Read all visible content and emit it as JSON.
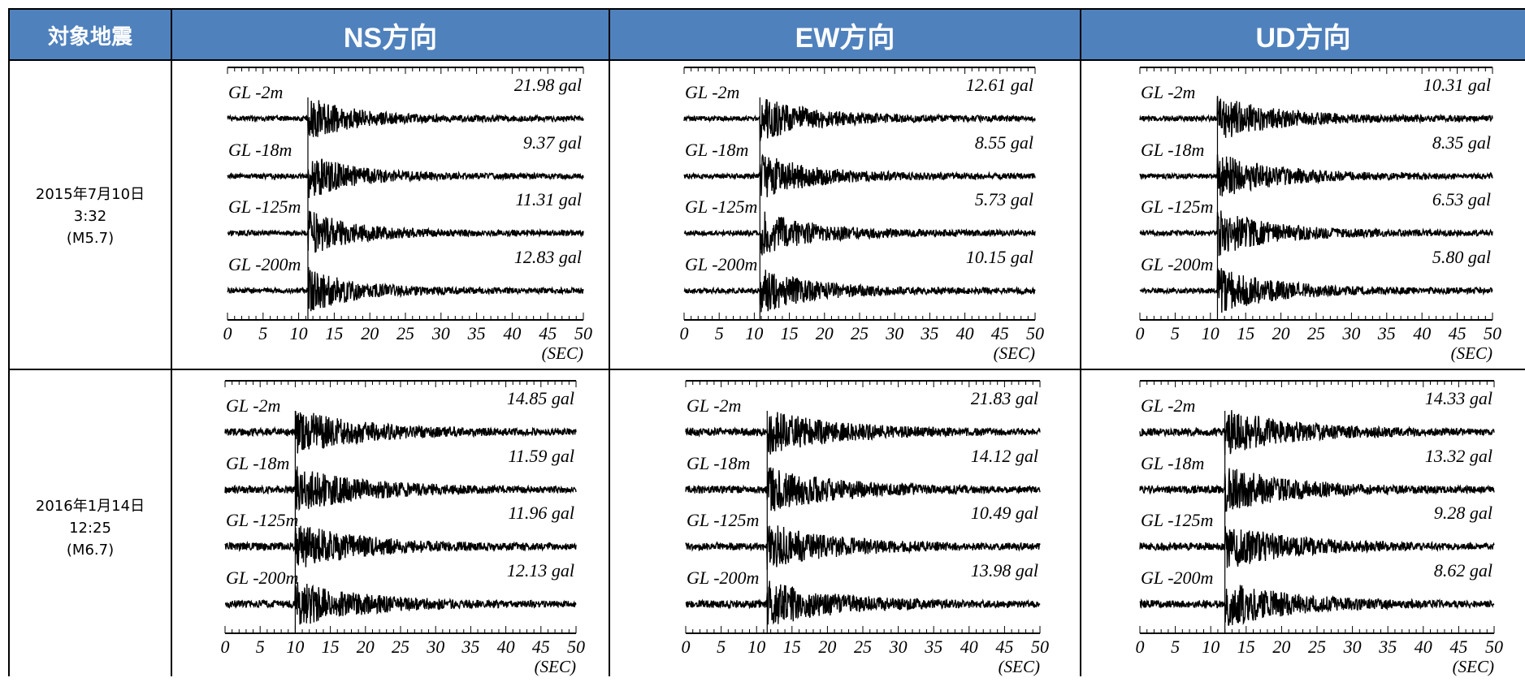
{
  "header": {
    "col0": "対象地震",
    "cols": [
      "NS方向",
      "EW方向",
      "UD方向"
    ]
  },
  "colors": {
    "header_bg": "#4f81bd",
    "header_text": "#ffffff",
    "trace": "#000000"
  },
  "rows": [
    {
      "date": "2015年7月10日",
      "time": "3:32",
      "mag": "(M5.7)"
    },
    {
      "date": "2016年1月14日",
      "time": "12:25",
      "mag": "(M6.7)"
    }
  ],
  "chart_data": [
    {
      "type": "line",
      "event": 0,
      "direction": "NS",
      "x_unit": "(SEC)",
      "xlim": [
        0,
        50
      ],
      "xticks": [
        "0",
        "5",
        "10",
        "15",
        "20",
        "25",
        "30",
        "35",
        "40",
        "45",
        "50"
      ],
      "onset_sec": 11.3,
      "coda": 0.35,
      "series": [
        {
          "name": "GL -2m",
          "peak": "21.98 gal"
        },
        {
          "name": "GL -18m",
          "peak": "9.37 gal"
        },
        {
          "name": "GL -125m",
          "peak": "11.31 gal"
        },
        {
          "name": "GL -200m",
          "peak": "12.83 gal"
        }
      ]
    },
    {
      "type": "line",
      "event": 0,
      "direction": "EW",
      "x_unit": "(SEC)",
      "xlim": [
        0,
        50
      ],
      "xticks": [
        "0",
        "5",
        "10",
        "15",
        "20",
        "25",
        "30",
        "35",
        "40",
        "45",
        "50"
      ],
      "onset_sec": 10.8,
      "coda": 0.5,
      "series": [
        {
          "name": "GL -2m",
          "peak": "12.61 gal"
        },
        {
          "name": "GL -18m",
          "peak": "8.55 gal"
        },
        {
          "name": "GL -125m",
          "peak": "5.73 gal"
        },
        {
          "name": "GL -200m",
          "peak": "10.15 gal"
        }
      ]
    },
    {
      "type": "line",
      "event": 0,
      "direction": "UD",
      "x_unit": "(SEC)",
      "xlim": [
        0,
        50
      ],
      "xticks": [
        "0",
        "5",
        "10",
        "15",
        "20",
        "25",
        "30",
        "35",
        "40",
        "45",
        "50"
      ],
      "onset_sec": 11.0,
      "coda": 0.55,
      "series": [
        {
          "name": "GL -2m",
          "peak": "10.31 gal"
        },
        {
          "name": "GL -18m",
          "peak": "8.35 gal"
        },
        {
          "name": "GL -125m",
          "peak": "6.53 gal"
        },
        {
          "name": "GL -200m",
          "peak": "5.80 gal"
        }
      ]
    },
    {
      "type": "line",
      "event": 1,
      "direction": "NS",
      "x_unit": "(SEC)",
      "xlim": [
        0,
        50
      ],
      "xticks": [
        "0",
        "5",
        "10",
        "15",
        "20",
        "25",
        "30",
        "35",
        "40",
        "45",
        "50"
      ],
      "onset_sec": 10.0,
      "coda": 0.7,
      "series": [
        {
          "name": "GL -2m",
          "peak": "14.85 gal"
        },
        {
          "name": "GL -18m",
          "peak": "11.59 gal"
        },
        {
          "name": "GL -125m",
          "peak": "11.96 gal"
        },
        {
          "name": "GL -200m",
          "peak": "12.13 gal"
        }
      ]
    },
    {
      "type": "line",
      "event": 1,
      "direction": "EW",
      "x_unit": "(SEC)",
      "xlim": [
        0,
        50
      ],
      "xticks": [
        "0",
        "5",
        "10",
        "15",
        "20",
        "25",
        "30",
        "35",
        "40",
        "45",
        "50"
      ],
      "onset_sec": 11.5,
      "coda": 0.7,
      "series": [
        {
          "name": "GL -2m",
          "peak": "21.83 gal"
        },
        {
          "name": "GL -18m",
          "peak": "14.12 gal"
        },
        {
          "name": "GL -125m",
          "peak": "10.49 gal"
        },
        {
          "name": "GL -200m",
          "peak": "13.98 gal"
        }
      ]
    },
    {
      "type": "line",
      "event": 1,
      "direction": "UD",
      "x_unit": "(SEC)",
      "xlim": [
        0,
        50
      ],
      "xticks": [
        "0",
        "5",
        "10",
        "15",
        "20",
        "25",
        "30",
        "35",
        "40",
        "45",
        "50"
      ],
      "onset_sec": 12.0,
      "coda": 0.7,
      "series": [
        {
          "name": "GL -2m",
          "peak": "14.33 gal"
        },
        {
          "name": "GL -18m",
          "peak": "13.32 gal"
        },
        {
          "name": "GL -125m",
          "peak": "9.28 gal"
        },
        {
          "name": "GL -200m",
          "peak": "8.62 gal"
        }
      ]
    }
  ]
}
